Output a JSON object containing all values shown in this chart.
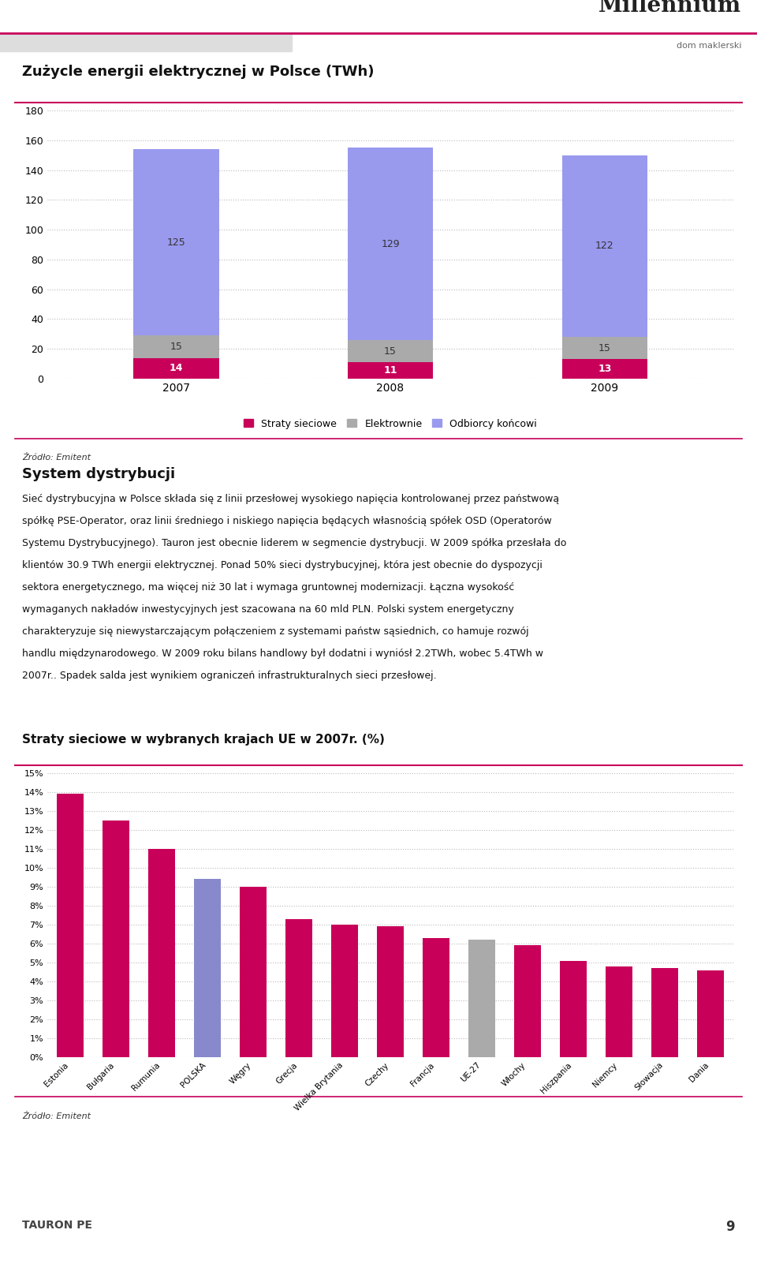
{
  "chart1_title": "Zużycle energii elektrycznej w Polsce (TWh)",
  "chart1_years": [
    "2007",
    "2008",
    "2009"
  ],
  "chart1_straty": [
    14,
    11,
    13
  ],
  "chart1_elektrownie": [
    15,
    15,
    15
  ],
  "chart1_odbiorcy": [
    125,
    129,
    122
  ],
  "chart1_ylim": [
    0,
    180
  ],
  "chart1_yticks": [
    0,
    20,
    40,
    60,
    80,
    100,
    120,
    140,
    160,
    180
  ],
  "chart1_color_straty": "#C8005A",
  "chart1_color_elektrownie": "#AAAAAA",
  "chart1_color_odbiorcy": "#9999EE",
  "chart1_legend": [
    "Straty sieciowe",
    "Elektrownie",
    "Odbiorcy końcowi"
  ],
  "chart1_source": "Źródło: Emitent",
  "section_title": "System dystrybucji",
  "section_text_lines": [
    "Sieć dystrybucyjna w Polsce składa się z linii przesłowej wysokiego napięcia kontrolowanej przez państwową",
    "spółkę PSE-Operator, oraz linii średniego i niskiego napięcia będących własnością spółek OSD (Operatorów",
    "Systemu Dystrybucyjnego). Tauron jest obecnie liderem w segmencie dystrybucji. W 2009 spółka przesłała do",
    "klientów 30.9 TWh energii elektrycznej. Ponad 50% sieci dystrybucyjnej, która jest obecnie do dyspozycji",
    "sektora energetycznego, ma więcej niż 30 lat i wymaga gruntownej modernizacji. Łączna wysokość",
    "wymaganych nakładów inwestycyjnych jest szacowana na 60 mld PLN. Polski system energetyczny",
    "charakteryzuje się niewystarczającym połączeniem z systemami państw sąsiednich, co hamuje rozwój",
    "handlu międzynarodowego. W 2009 roku bilans handlowy był dodatni i wyniósł 2.2TWh, wobec 5.4TWh w",
    "2007r.. Spadek salda jest wynikiem ograniczeń infrastrukturalnych sieci przesłowej."
  ],
  "chart2_title": "Straty sieciowe w wybranych krajach UE w 2007r. (%)",
  "chart2_categories": [
    "Estonia",
    "Bułgaria",
    "Rumunia",
    "POLSKA",
    "Węgry",
    "Grecja",
    "Wielka Brytania",
    "Czechy",
    "Francja",
    "UE-27",
    "Włochy",
    "Hiszpania",
    "Niemcy",
    "Słowacja",
    "Dania"
  ],
  "chart2_values": [
    13.9,
    12.5,
    11.0,
    9.4,
    9.0,
    7.3,
    7.0,
    6.9,
    6.3,
    6.2,
    5.9,
    5.1,
    4.8,
    4.7,
    4.6
  ],
  "chart2_colors": [
    "#C8005A",
    "#C8005A",
    "#C8005A",
    "#8888CC",
    "#C8005A",
    "#C8005A",
    "#C8005A",
    "#C8005A",
    "#C8005A",
    "#AAAAAA",
    "#C8005A",
    "#C8005A",
    "#C8005A",
    "#C8005A",
    "#C8005A"
  ],
  "chart2_ytick_labels": [
    "0%",
    "1%",
    "2%",
    "3%",
    "4%",
    "5%",
    "6%",
    "7%",
    "8%",
    "9%",
    "10%",
    "11%",
    "12%",
    "13%",
    "14%",
    "15%"
  ],
  "chart2_source": "Źródło: Emitent",
  "crimson_line_color": "#C8005A",
  "page_bg": "#FFFFFF",
  "millennium_text": "Millennium",
  "millennium_sub": "dom maklerski",
  "page_number": "9",
  "tauron_text": "TAURON PE"
}
